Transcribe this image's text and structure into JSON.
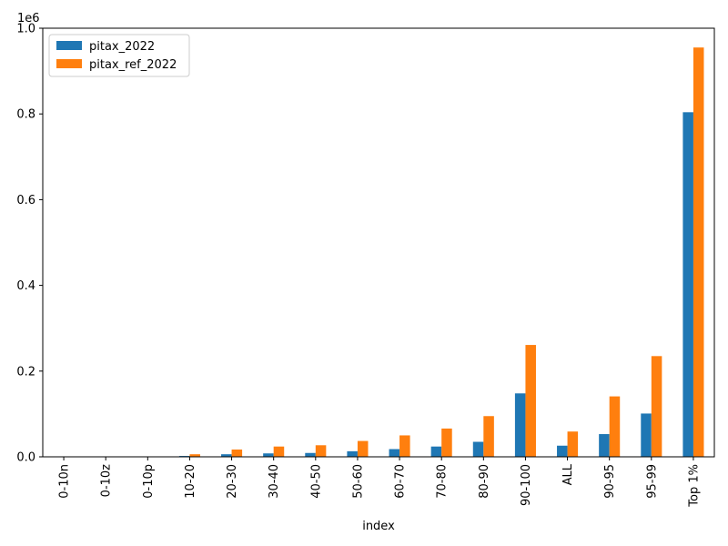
{
  "chart_data": {
    "type": "bar",
    "categories": [
      "0-10n",
      "0-10z",
      "0-10p",
      "10-20",
      "20-30",
      "30-40",
      "40-50",
      "50-60",
      "60-70",
      "70-80",
      "80-90",
      "90-100",
      "ALL",
      "90-95",
      "95-99",
      "Top 1%"
    ],
    "series": [
      {
        "name": "pitax_2022",
        "color": "#1f77b4",
        "values": [
          0,
          0,
          0,
          2000,
          6000,
          8000,
          9000,
          13000,
          18000,
          24000,
          35000,
          148000,
          26000,
          53000,
          101000,
          804000
        ]
      },
      {
        "name": "pitax_ref_2022",
        "color": "#ff7f0e",
        "values": [
          0,
          0,
          0,
          6000,
          17000,
          24000,
          27000,
          37000,
          50000,
          66000,
          95000,
          261000,
          59000,
          141000,
          235000,
          955000
        ]
      }
    ],
    "xlabel": "index",
    "ylabel": "",
    "ylim": [
      0,
      1000000
    ],
    "yticks": [
      0,
      200000,
      400000,
      600000,
      800000,
      1000000
    ],
    "ytick_labels": [
      "0.0",
      "0.2",
      "0.4",
      "0.6",
      "0.8",
      "1.0"
    ],
    "offset_label": "1e6",
    "legend_position": "upper-left",
    "grid": false
  }
}
